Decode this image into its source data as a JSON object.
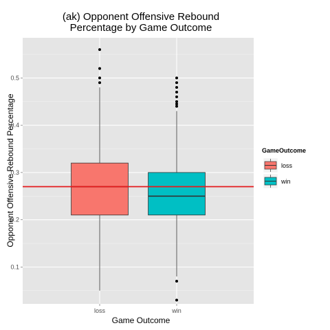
{
  "chart_data": {
    "type": "boxplot",
    "title_lines": [
      "(ak) Opponent Offensive Rebound",
      "Percentage by Game Outcome"
    ],
    "xlabel": "Game Outcome",
    "ylabel": "Opponent Offensive Rebound Percentage",
    "ylim": [
      0.022,
      0.585
    ],
    "yticks": [
      0.1,
      0.2,
      0.3,
      0.4,
      0.5
    ],
    "ytick_labels": [
      "0.1",
      "0.2",
      "0.3",
      "0.4",
      "0.5"
    ],
    "categories": [
      "loss",
      "win"
    ],
    "boxes": [
      {
        "category": "loss",
        "lower_whisker": 0.05,
        "q1": 0.21,
        "median": 0.27,
        "q3": 0.32,
        "upper_whisker": 0.48,
        "outliers": [
          0.49,
          0.5,
          0.52,
          0.56
        ],
        "color": "#F8766D"
      },
      {
        "category": "win",
        "lower_whisker": 0.08,
        "q1": 0.21,
        "median": 0.25,
        "q3": 0.3,
        "upper_whisker": 0.43,
        "outliers": [
          0.03,
          0.07,
          0.44,
          0.445,
          0.45,
          0.46,
          0.47,
          0.48,
          0.49,
          0.5
        ],
        "color": "#00BFC4"
      }
    ],
    "reference_line": {
      "y": 0.27,
      "color": "#E41A1C"
    },
    "legend": {
      "title": "GameOutcome",
      "entries": [
        {
          "label": "loss",
          "color": "#F8766D"
        },
        {
          "label": "win",
          "color": "#00BFC4"
        }
      ],
      "placement": "right"
    },
    "grid": true
  }
}
